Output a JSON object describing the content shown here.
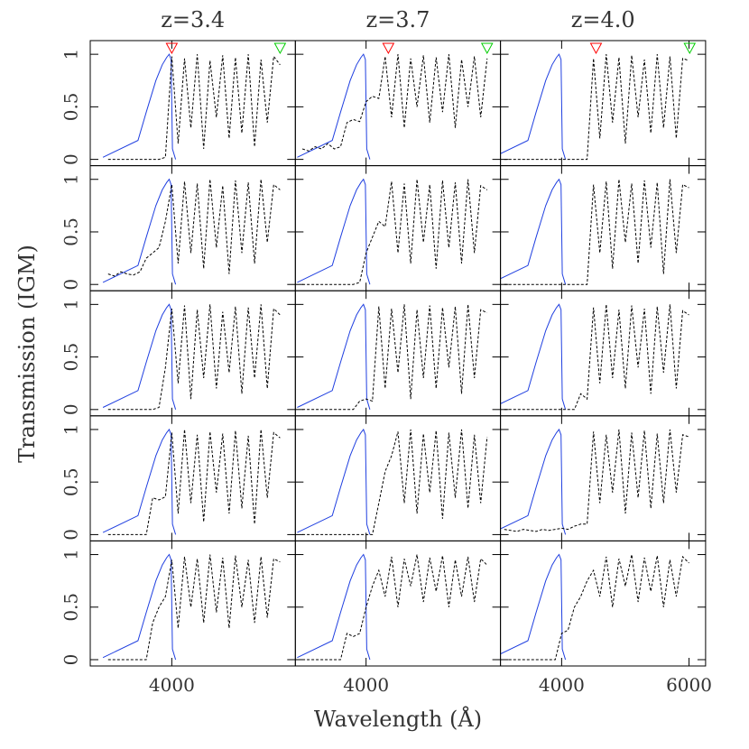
{
  "chart_data": {
    "type": "line",
    "ylabel": "Transmission (IGM)",
    "xlabel": "Wavelength (Å)",
    "ylim": [
      -0.06,
      1.13
    ],
    "yticks": [
      0,
      0.5,
      1
    ],
    "curve_color": "#000000",
    "x": [
      3000,
      3100,
      3200,
      3300,
      3400,
      3500,
      3600,
      3700,
      3800,
      3900,
      4000,
      4100,
      4200,
      4300,
      4400,
      4500,
      4600,
      4700,
      4800,
      4900,
      5000,
      5100,
      5200,
      5300,
      5400,
      5500,
      5600,
      5700,
      5800,
      5900,
      6000
    ],
    "filter": {
      "color": "#1f3fe0",
      "x": [
        2920,
        3470,
        3600,
        3750,
        3850,
        3920,
        3960,
        3990,
        4010,
        4060
      ],
      "values": [
        0.02,
        0.18,
        0.45,
        0.75,
        0.9,
        0.97,
        1.0,
        0.95,
        0.1,
        0
      ]
    },
    "columns": [
      {
        "title": "z=3.4",
        "xlim": [
          2720,
          5940
        ],
        "xticks": [
          4000
        ],
        "markers": [
          {
            "x": 4000,
            "color": "#ff0000"
          },
          {
            "x": 5700,
            "color": "#00cc00"
          }
        ]
      },
      {
        "title": "z=3.7",
        "xlim": [
          2890,
          6110
        ],
        "xticks": [
          4000
        ],
        "markers": [
          {
            "x": 4350,
            "color": "#ff0000"
          },
          {
            "x": 5900,
            "color": "#00cc00"
          }
        ]
      },
      {
        "title": "z=4.0",
        "xlim": [
          3040,
          6260
        ],
        "xticks": [
          4000,
          6000
        ],
        "markers": [
          {
            "x": 4540,
            "color": "#ff0000"
          },
          {
            "x": 6010,
            "color": "#00cc00"
          }
        ]
      }
    ],
    "panels": [
      [
        [
          0,
          0,
          0,
          0,
          0,
          0,
          0,
          0,
          0,
          0.02,
          0.98,
          0.15,
          0.96,
          0.3,
          1.0,
          0.1,
          0.94,
          0.4,
          0.99,
          0.2,
          0.97,
          0.25,
          1.0,
          0.12,
          0.95,
          0.35,
          0.98,
          0.9,
          null,
          null,
          null
        ],
        [
          0.1,
          0.08,
          0.12,
          0.1,
          0.15,
          0.1,
          0.12,
          0.35,
          0.38,
          0.36,
          0.55,
          0.6,
          0.58,
          0.98,
          0.4,
          1.0,
          0.3,
          0.96,
          0.5,
          0.99,
          0.35,
          0.97,
          0.45,
          1.0,
          0.3,
          0.95,
          0.5,
          0.98,
          0.4,
          0.96,
          null
        ],
        [
          null,
          0,
          0,
          0,
          0,
          0,
          0,
          0,
          0,
          0,
          0,
          0,
          0,
          0,
          0,
          0.96,
          0.2,
          1.0,
          0.35,
          0.97,
          0.15,
          0.99,
          0.4,
          0.95,
          0.25,
          1.0,
          0.3,
          0.98,
          0.2,
          0.96,
          0.94
        ]
      ],
      [
        [
          0.1,
          0.08,
          0.12,
          0.1,
          0.09,
          0.12,
          0.25,
          0.3,
          0.35,
          0.6,
          0.95,
          0.2,
          0.98,
          0.3,
          0.96,
          0.15,
          1.0,
          0.35,
          0.94,
          0.1,
          0.99,
          0.3,
          0.97,
          0.2,
          1.0,
          0.4,
          0.95,
          0.9,
          null,
          null,
          null
        ],
        [
          0,
          0,
          0,
          0,
          0,
          0,
          0,
          0,
          0,
          0.02,
          0.3,
          0.45,
          0.6,
          0.55,
          0.98,
          0.3,
          0.96,
          0.2,
          1.0,
          0.4,
          0.95,
          0.15,
          0.99,
          0.35,
          0.97,
          0.2,
          1.0,
          0.3,
          0.94,
          0.9,
          null
        ],
        [
          null,
          0,
          0,
          0,
          0,
          0,
          0,
          0,
          0,
          0,
          0,
          0,
          0,
          0,
          0,
          0.95,
          0.3,
          0.98,
          0.15,
          1.0,
          0.4,
          0.96,
          0.2,
          0.99,
          0.35,
          0.97,
          0.1,
          1.0,
          0.3,
          0.95,
          0.92
        ]
      ],
      [
        [
          0,
          0,
          0,
          0,
          0,
          0,
          0,
          0,
          0.02,
          0.4,
          0.96,
          0.25,
          0.99,
          0.1,
          0.95,
          0.3,
          1.0,
          0.2,
          0.93,
          0.35,
          0.98,
          0.15,
          0.97,
          0.3,
          1.0,
          0.2,
          0.96,
          0.9,
          null,
          null,
          null
        ],
        [
          0,
          0,
          0,
          0,
          0,
          0,
          0,
          0,
          0,
          0.08,
          0.1,
          0.08,
          0.98,
          0.2,
          0.96,
          0.35,
          1.0,
          0.1,
          0.95,
          0.3,
          0.99,
          0.2,
          0.97,
          0.4,
          0.98,
          0.15,
          1.0,
          0.3,
          0.95,
          0.92,
          null
        ],
        [
          null,
          0,
          0,
          0,
          0,
          0,
          0,
          0,
          0,
          0,
          0,
          0,
          0,
          0.15,
          0.1,
          0.97,
          0.25,
          1.0,
          0.3,
          0.95,
          0.2,
          0.99,
          0.4,
          0.96,
          0.15,
          0.98,
          0.35,
          1.0,
          0.2,
          0.94,
          0.9
        ]
      ],
      [
        [
          0,
          0,
          0,
          0,
          0,
          0,
          0,
          0.35,
          0.33,
          0.36,
          0.97,
          0.2,
          1.0,
          0.3,
          0.95,
          0.12,
          0.98,
          0.4,
          0.96,
          0.2,
          0.99,
          0.25,
          0.94,
          0.1,
          1.0,
          0.35,
          0.97,
          0.92,
          null,
          null,
          null
        ],
        [
          0,
          0,
          0,
          0,
          0,
          0,
          0,
          0,
          0,
          0,
          0,
          0,
          0.3,
          0.6,
          0.75,
          0.98,
          0.3,
          1.0,
          0.2,
          0.96,
          0.4,
          0.99,
          0.15,
          0.97,
          0.35,
          1.0,
          0.25,
          0.95,
          0.3,
          0.93,
          null
        ],
        [
          null,
          0.05,
          0.04,
          0.03,
          0.05,
          0.04,
          0.03,
          0.05,
          0.04,
          0.05,
          0.06,
          0.05,
          0.08,
          0.1,
          0.1,
          0.98,
          0.3,
          0.95,
          0.4,
          1.0,
          0.2,
          0.97,
          0.35,
          0.99,
          0.25,
          0.96,
          0.3,
          1.0,
          0.4,
          0.95,
          0.93
        ]
      ],
      [
        [
          0,
          0,
          0,
          0,
          0,
          0,
          0,
          0.35,
          0.5,
          0.6,
          0.95,
          0.3,
          0.98,
          0.5,
          0.96,
          0.35,
          1.0,
          0.45,
          0.97,
          0.3,
          0.99,
          0.5,
          0.95,
          0.35,
          0.98,
          0.4,
          0.96,
          0.93,
          null,
          null,
          null
        ],
        [
          0,
          0,
          0,
          0,
          0,
          0,
          0,
          0.25,
          0.22,
          0.25,
          0.5,
          0.7,
          0.85,
          0.6,
          0.98,
          0.5,
          0.96,
          0.7,
          1.0,
          0.55,
          0.97,
          0.65,
          0.99,
          0.5,
          0.95,
          0.6,
          0.98,
          0.55,
          0.96,
          0.9,
          null
        ],
        [
          null,
          0,
          0,
          0,
          0,
          0,
          0,
          0,
          0,
          0,
          0.25,
          0.28,
          0.5,
          0.6,
          0.75,
          0.85,
          0.6,
          0.98,
          0.5,
          0.96,
          0.7,
          1.0,
          0.55,
          0.97,
          0.65,
          0.99,
          0.5,
          0.95,
          0.6,
          0.98,
          0.92
        ]
      ]
    ]
  }
}
